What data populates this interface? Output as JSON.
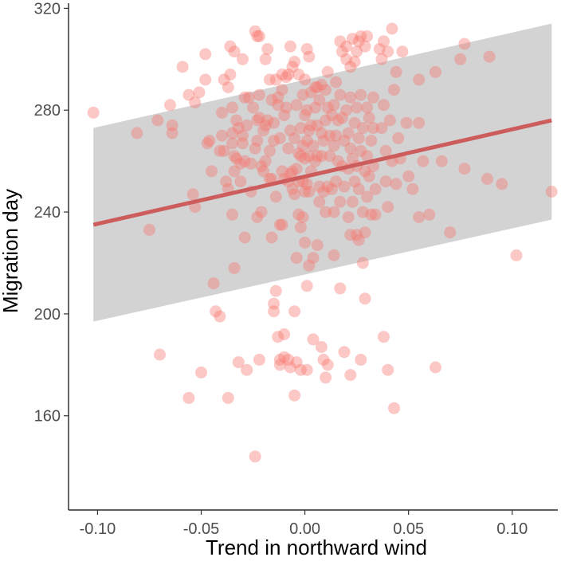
{
  "chart_data": {
    "type": "scatter",
    "title": "",
    "xlabel": "Trend in northward wind",
    "ylabel": "Migration day",
    "xlim": [
      -0.114,
      0.122
    ],
    "ylim": [
      123,
      322
    ],
    "x_ticks": [
      -0.1,
      -0.05,
      0.0,
      0.05,
      0.1
    ],
    "x_tick_labels": [
      "-0.10",
      "-0.05",
      "0.00",
      "0.05",
      "0.10"
    ],
    "y_ticks": [
      160,
      200,
      240,
      280,
      320
    ],
    "y_tick_labels": [
      "160",
      "200",
      "240",
      "280",
      "320"
    ],
    "grid": false,
    "legend": "none",
    "colors": {
      "points": "#f8766d",
      "fit_line": "#cd5c5c",
      "band": "#d3d3d3",
      "axis": "#000000"
    },
    "fit": {
      "x": [
        -0.102,
        0.119
      ],
      "y": [
        235,
        276
      ]
    },
    "band": {
      "x": [
        -0.102,
        0.119
      ],
      "lower": [
        197,
        237
      ],
      "upper": [
        273,
        314
      ]
    },
    "points": [
      {
        "x": -0.102,
        "y": 279
      },
      {
        "x": -0.081,
        "y": 271
      },
      {
        "x": -0.075,
        "y": 233
      },
      {
        "x": -0.071,
        "y": 276
      },
      {
        "x": -0.07,
        "y": 184
      },
      {
        "x": -0.065,
        "y": 282
      },
      {
        "x": -0.064,
        "y": 274
      },
      {
        "x": -0.064,
        "y": 271
      },
      {
        "x": -0.059,
        "y": 297
      },
      {
        "x": -0.056,
        "y": 286
      },
      {
        "x": -0.056,
        "y": 167
      },
      {
        "x": -0.054,
        "y": 247
      },
      {
        "x": -0.053,
        "y": 242
      },
      {
        "x": -0.053,
        "y": 283
      },
      {
        "x": -0.051,
        "y": 287
      },
      {
        "x": -0.05,
        "y": 177
      },
      {
        "x": -0.048,
        "y": 302
      },
      {
        "x": -0.048,
        "y": 292
      },
      {
        "x": -0.047,
        "y": 267
      },
      {
        "x": -0.046,
        "y": 268
      },
      {
        "x": -0.045,
        "y": 256
      },
      {
        "x": -0.044,
        "y": 212
      },
      {
        "x": -0.043,
        "y": 201
      },
      {
        "x": -0.041,
        "y": 199
      },
      {
        "x": -0.041,
        "y": 264
      },
      {
        "x": -0.04,
        "y": 270
      },
      {
        "x": -0.04,
        "y": 279
      },
      {
        "x": -0.039,
        "y": 264
      },
      {
        "x": -0.039,
        "y": 292
      },
      {
        "x": -0.038,
        "y": 252
      },
      {
        "x": -0.037,
        "y": 249
      },
      {
        "x": -0.037,
        "y": 289
      },
      {
        "x": -0.037,
        "y": 167
      },
      {
        "x": -0.036,
        "y": 305
      },
      {
        "x": -0.036,
        "y": 294
      },
      {
        "x": -0.035,
        "y": 281
      },
      {
        "x": -0.035,
        "y": 267
      },
      {
        "x": -0.035,
        "y": 271
      },
      {
        "x": -0.035,
        "y": 239
      },
      {
        "x": -0.034,
        "y": 262
      },
      {
        "x": -0.034,
        "y": 303
      },
      {
        "x": -0.034,
        "y": 256
      },
      {
        "x": -0.034,
        "y": 218
      },
      {
        "x": -0.033,
        "y": 276
      },
      {
        "x": -0.033,
        "y": 261
      },
      {
        "x": -0.032,
        "y": 273
      },
      {
        "x": -0.032,
        "y": 181
      },
      {
        "x": -0.031,
        "y": 259
      },
      {
        "x": -0.031,
        "y": 252
      },
      {
        "x": -0.03,
        "y": 270
      },
      {
        "x": -0.03,
        "y": 300
      },
      {
        "x": -0.03,
        "y": 267
      },
      {
        "x": -0.029,
        "y": 285
      },
      {
        "x": -0.029,
        "y": 260
      },
      {
        "x": -0.029,
        "y": 230
      },
      {
        "x": -0.028,
        "y": 178
      },
      {
        "x": -0.028,
        "y": 274
      },
      {
        "x": -0.027,
        "y": 285
      },
      {
        "x": -0.026,
        "y": 259
      },
      {
        "x": -0.026,
        "y": 248
      },
      {
        "x": -0.025,
        "y": 281
      },
      {
        "x": -0.024,
        "y": 311
      },
      {
        "x": -0.024,
        "y": 265
      },
      {
        "x": -0.024,
        "y": 144
      },
      {
        "x": -0.023,
        "y": 268
      },
      {
        "x": -0.023,
        "y": 276
      },
      {
        "x": -0.023,
        "y": 238
      },
      {
        "x": -0.023,
        "y": 309
      },
      {
        "x": -0.022,
        "y": 277
      },
      {
        "x": -0.022,
        "y": 182
      },
      {
        "x": -0.022,
        "y": 309
      },
      {
        "x": -0.022,
        "y": 286
      },
      {
        "x": -0.021,
        "y": 240
      },
      {
        "x": -0.021,
        "y": 258
      },
      {
        "x": -0.02,
        "y": 272
      },
      {
        "x": -0.02,
        "y": 256
      },
      {
        "x": -0.019,
        "y": 300
      },
      {
        "x": -0.019,
        "y": 260
      },
      {
        "x": -0.019,
        "y": 274
      },
      {
        "x": -0.018,
        "y": 304
      },
      {
        "x": -0.018,
        "y": 276
      },
      {
        "x": -0.017,
        "y": 264
      },
      {
        "x": -0.017,
        "y": 292
      },
      {
        "x": -0.017,
        "y": 253
      },
      {
        "x": -0.016,
        "y": 284
      },
      {
        "x": -0.016,
        "y": 230
      },
      {
        "x": -0.016,
        "y": 253
      },
      {
        "x": -0.015,
        "y": 268
      },
      {
        "x": -0.015,
        "y": 204
      },
      {
        "x": -0.015,
        "y": 201
      },
      {
        "x": -0.015,
        "y": 275
      },
      {
        "x": -0.014,
        "y": 292
      },
      {
        "x": -0.014,
        "y": 209
      },
      {
        "x": -0.014,
        "y": 246
      },
      {
        "x": -0.013,
        "y": 285
      },
      {
        "x": -0.013,
        "y": 282
      },
      {
        "x": -0.013,
        "y": 191
      },
      {
        "x": -0.012,
        "y": 269
      },
      {
        "x": -0.012,
        "y": 235
      },
      {
        "x": -0.012,
        "y": 182
      },
      {
        "x": -0.012,
        "y": 180
      },
      {
        "x": -0.011,
        "y": 294
      },
      {
        "x": -0.011,
        "y": 288
      },
      {
        "x": -0.011,
        "y": 256
      },
      {
        "x": -0.011,
        "y": 235
      },
      {
        "x": -0.01,
        "y": 278
      },
      {
        "x": -0.01,
        "y": 183
      },
      {
        "x": -0.01,
        "y": 192
      },
      {
        "x": -0.01,
        "y": 253
      },
      {
        "x": -0.009,
        "y": 293
      },
      {
        "x": -0.009,
        "y": 281
      },
      {
        "x": -0.008,
        "y": 294
      },
      {
        "x": -0.008,
        "y": 265
      },
      {
        "x": -0.008,
        "y": 252
      },
      {
        "x": -0.008,
        "y": 182
      },
      {
        "x": -0.007,
        "y": 272
      },
      {
        "x": -0.007,
        "y": 255
      },
      {
        "x": -0.007,
        "y": 305
      },
      {
        "x": -0.007,
        "y": 179
      },
      {
        "x": -0.006,
        "y": 297
      },
      {
        "x": -0.006,
        "y": 256
      },
      {
        "x": -0.006,
        "y": 249
      },
      {
        "x": -0.005,
        "y": 299
      },
      {
        "x": -0.005,
        "y": 269
      },
      {
        "x": -0.005,
        "y": 247
      },
      {
        "x": -0.005,
        "y": 201
      },
      {
        "x": -0.005,
        "y": 168
      },
      {
        "x": -0.004,
        "y": 282
      },
      {
        "x": -0.004,
        "y": 257
      },
      {
        "x": -0.004,
        "y": 222
      },
      {
        "x": -0.004,
        "y": 181
      },
      {
        "x": -0.003,
        "y": 294
      },
      {
        "x": -0.003,
        "y": 263
      },
      {
        "x": -0.003,
        "y": 252
      },
      {
        "x": -0.003,
        "y": 239
      },
      {
        "x": -0.002,
        "y": 273
      },
      {
        "x": -0.002,
        "y": 262
      },
      {
        "x": -0.002,
        "y": 234
      },
      {
        "x": -0.002,
        "y": 178
      },
      {
        "x": -0.001,
        "y": 286
      },
      {
        "x": -0.001,
        "y": 266
      },
      {
        "x": -0.001,
        "y": 252
      },
      {
        "x": -0.001,
        "y": 238
      },
      {
        "x": 0.0,
        "y": 292
      },
      {
        "x": 0.0,
        "y": 278
      },
      {
        "x": 0.0,
        "y": 261
      },
      {
        "x": 0.0,
        "y": 248
      },
      {
        "x": 0.0,
        "y": 228
      },
      {
        "x": 0.001,
        "y": 304
      },
      {
        "x": 0.001,
        "y": 280
      },
      {
        "x": 0.001,
        "y": 268
      },
      {
        "x": 0.001,
        "y": 251
      },
      {
        "x": 0.001,
        "y": 211
      },
      {
        "x": 0.001,
        "y": 178
      },
      {
        "x": 0.002,
        "y": 301
      },
      {
        "x": 0.002,
        "y": 272
      },
      {
        "x": 0.002,
        "y": 262
      },
      {
        "x": 0.002,
        "y": 248
      },
      {
        "x": 0.002,
        "y": 219
      },
      {
        "x": 0.003,
        "y": 287
      },
      {
        "x": 0.003,
        "y": 274
      },
      {
        "x": 0.003,
        "y": 256
      },
      {
        "x": 0.004,
        "y": 266
      },
      {
        "x": 0.004,
        "y": 222
      },
      {
        "x": 0.004,
        "y": 190
      },
      {
        "x": 0.005,
        "y": 289
      },
      {
        "x": 0.005,
        "y": 281
      },
      {
        "x": 0.005,
        "y": 260
      },
      {
        "x": 0.006,
        "y": 289
      },
      {
        "x": 0.006,
        "y": 274
      },
      {
        "x": 0.006,
        "y": 262
      },
      {
        "x": 0.006,
        "y": 227
      },
      {
        "x": 0.007,
        "y": 284
      },
      {
        "x": 0.007,
        "y": 250
      },
      {
        "x": 0.007,
        "y": 244
      },
      {
        "x": 0.008,
        "y": 290
      },
      {
        "x": 0.008,
        "y": 271
      },
      {
        "x": 0.008,
        "y": 262
      },
      {
        "x": 0.008,
        "y": 187
      },
      {
        "x": 0.009,
        "y": 268
      },
      {
        "x": 0.009,
        "y": 248
      },
      {
        "x": 0.009,
        "y": 182
      },
      {
        "x": 0.01,
        "y": 288
      },
      {
        "x": 0.01,
        "y": 276
      },
      {
        "x": 0.01,
        "y": 240
      },
      {
        "x": 0.01,
        "y": 175
      },
      {
        "x": 0.011,
        "y": 295
      },
      {
        "x": 0.011,
        "y": 281
      },
      {
        "x": 0.011,
        "y": 250
      },
      {
        "x": 0.011,
        "y": 180
      },
      {
        "x": 0.012,
        "y": 270
      },
      {
        "x": 0.012,
        "y": 262
      },
      {
        "x": 0.013,
        "y": 278
      },
      {
        "x": 0.013,
        "y": 249
      },
      {
        "x": 0.014,
        "y": 282
      },
      {
        "x": 0.014,
        "y": 266
      },
      {
        "x": 0.014,
        "y": 240
      },
      {
        "x": 0.014,
        "y": 223
      },
      {
        "x": 0.015,
        "y": 291
      },
      {
        "x": 0.015,
        "y": 270
      },
      {
        "x": 0.015,
        "y": 252
      },
      {
        "x": 0.016,
        "y": 276
      },
      {
        "x": 0.016,
        "y": 260
      },
      {
        "x": 0.017,
        "y": 307
      },
      {
        "x": 0.017,
        "y": 286
      },
      {
        "x": 0.017,
        "y": 244
      },
      {
        "x": 0.017,
        "y": 210
      },
      {
        "x": 0.018,
        "y": 303
      },
      {
        "x": 0.018,
        "y": 277
      },
      {
        "x": 0.018,
        "y": 258
      },
      {
        "x": 0.019,
        "y": 268
      },
      {
        "x": 0.019,
        "y": 250
      },
      {
        "x": 0.019,
        "y": 185
      },
      {
        "x": 0.02,
        "y": 305
      },
      {
        "x": 0.02,
        "y": 300
      },
      {
        "x": 0.02,
        "y": 280
      },
      {
        "x": 0.021,
        "y": 271
      },
      {
        "x": 0.021,
        "y": 257
      },
      {
        "x": 0.021,
        "y": 238
      },
      {
        "x": 0.022,
        "y": 297
      },
      {
        "x": 0.022,
        "y": 285
      },
      {
        "x": 0.022,
        "y": 265
      },
      {
        "x": 0.022,
        "y": 231
      },
      {
        "x": 0.022,
        "y": 176
      },
      {
        "x": 0.023,
        "y": 308
      },
      {
        "x": 0.023,
        "y": 261
      },
      {
        "x": 0.023,
        "y": 244
      },
      {
        "x": 0.024,
        "y": 299
      },
      {
        "x": 0.024,
        "y": 275
      },
      {
        "x": 0.024,
        "y": 252
      },
      {
        "x": 0.025,
        "y": 303
      },
      {
        "x": 0.025,
        "y": 281
      },
      {
        "x": 0.025,
        "y": 258
      },
      {
        "x": 0.025,
        "y": 231
      },
      {
        "x": 0.026,
        "y": 307
      },
      {
        "x": 0.026,
        "y": 269
      },
      {
        "x": 0.026,
        "y": 249
      },
      {
        "x": 0.026,
        "y": 229
      },
      {
        "x": 0.027,
        "y": 309
      },
      {
        "x": 0.027,
        "y": 286
      },
      {
        "x": 0.027,
        "y": 264
      },
      {
        "x": 0.027,
        "y": 182
      },
      {
        "x": 0.028,
        "y": 273
      },
      {
        "x": 0.028,
        "y": 240
      },
      {
        "x": 0.028,
        "y": 220
      },
      {
        "x": 0.029,
        "y": 305
      },
      {
        "x": 0.029,
        "y": 256
      },
      {
        "x": 0.029,
        "y": 232
      },
      {
        "x": 0.029,
        "y": 206
      },
      {
        "x": 0.03,
        "y": 309
      },
      {
        "x": 0.03,
        "y": 281
      },
      {
        "x": 0.03,
        "y": 262
      },
      {
        "x": 0.03,
        "y": 246
      },
      {
        "x": 0.031,
        "y": 277
      },
      {
        "x": 0.031,
        "y": 254
      },
      {
        "x": 0.032,
        "y": 268
      },
      {
        "x": 0.032,
        "y": 239
      },
      {
        "x": 0.033,
        "y": 285
      },
      {
        "x": 0.033,
        "y": 273
      },
      {
        "x": 0.033,
        "y": 258
      },
      {
        "x": 0.034,
        "y": 249
      },
      {
        "x": 0.034,
        "y": 239
      },
      {
        "x": 0.036,
        "y": 304
      },
      {
        "x": 0.037,
        "y": 300
      },
      {
        "x": 0.037,
        "y": 273
      },
      {
        "x": 0.038,
        "y": 307
      },
      {
        "x": 0.038,
        "y": 282
      },
      {
        "x": 0.038,
        "y": 191
      },
      {
        "x": 0.039,
        "y": 264
      },
      {
        "x": 0.039,
        "y": 252
      },
      {
        "x": 0.04,
        "y": 303
      },
      {
        "x": 0.04,
        "y": 242
      },
      {
        "x": 0.04,
        "y": 178
      },
      {
        "x": 0.041,
        "y": 276
      },
      {
        "x": 0.042,
        "y": 312
      },
      {
        "x": 0.042,
        "y": 260
      },
      {
        "x": 0.043,
        "y": 163
      },
      {
        "x": 0.043,
        "y": 288
      },
      {
        "x": 0.044,
        "y": 295
      },
      {
        "x": 0.044,
        "y": 251
      },
      {
        "x": 0.045,
        "y": 269
      },
      {
        "x": 0.046,
        "y": 261
      },
      {
        "x": 0.047,
        "y": 303
      },
      {
        "x": 0.049,
        "y": 275
      },
      {
        "x": 0.05,
        "y": 254
      },
      {
        "x": 0.052,
        "y": 249
      },
      {
        "x": 0.055,
        "y": 292
      },
      {
        "x": 0.055,
        "y": 275
      },
      {
        "x": 0.055,
        "y": 238
      },
      {
        "x": 0.057,
        "y": 260
      },
      {
        "x": 0.06,
        "y": 239
      },
      {
        "x": 0.063,
        "y": 295
      },
      {
        "x": 0.063,
        "y": 179
      },
      {
        "x": 0.066,
        "y": 260
      },
      {
        "x": 0.07,
        "y": 232
      },
      {
        "x": 0.075,
        "y": 300
      },
      {
        "x": 0.077,
        "y": 306
      },
      {
        "x": 0.077,
        "y": 257
      },
      {
        "x": 0.088,
        "y": 253
      },
      {
        "x": 0.089,
        "y": 301
      },
      {
        "x": 0.095,
        "y": 251
      },
      {
        "x": 0.102,
        "y": 223
      },
      {
        "x": 0.119,
        "y": 248
      }
    ]
  }
}
